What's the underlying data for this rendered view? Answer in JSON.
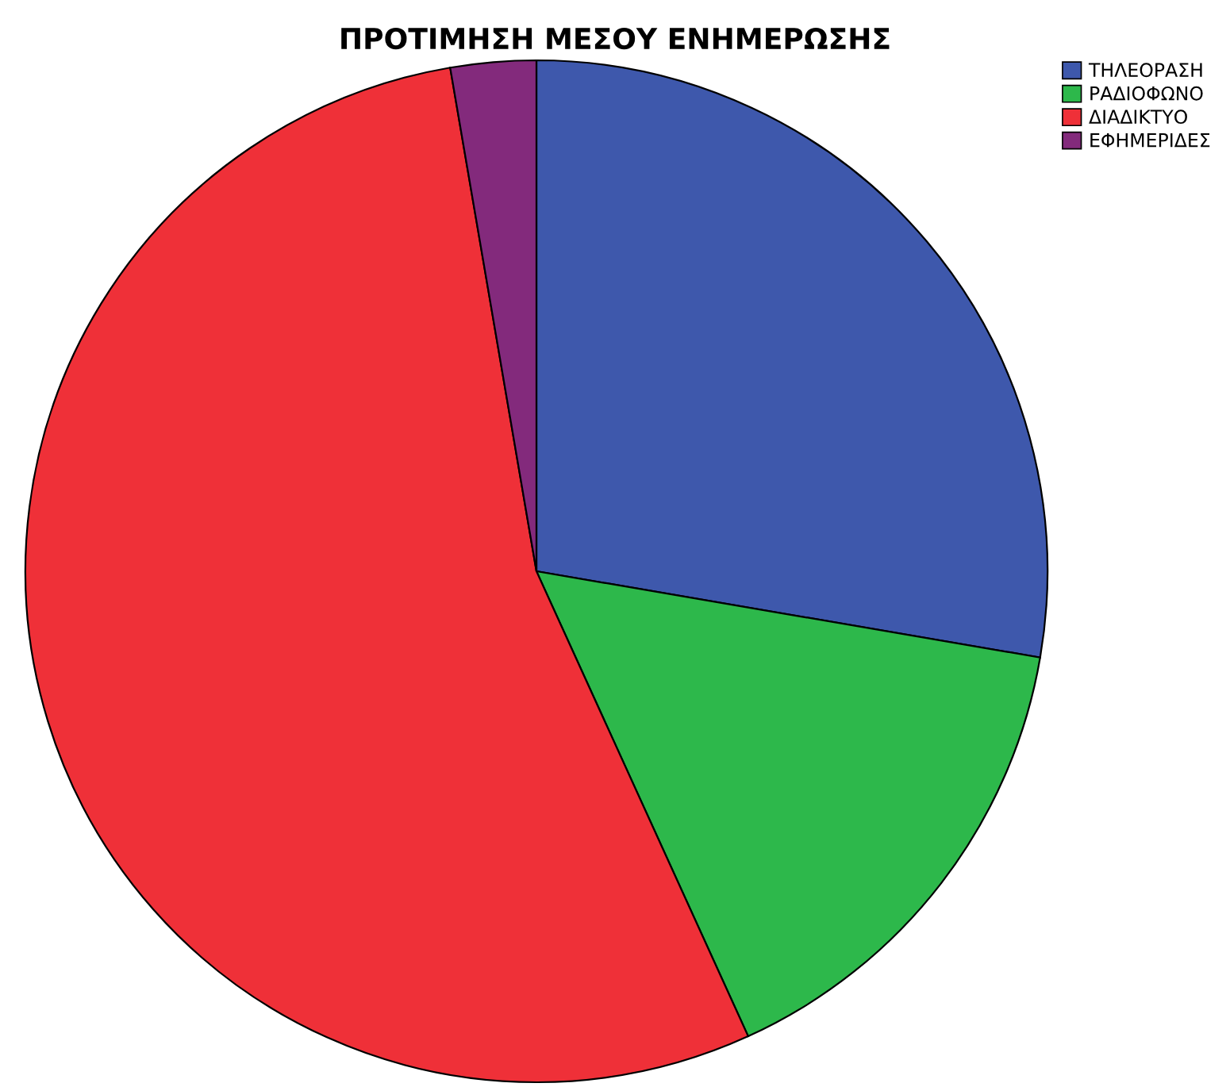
{
  "chart_data": {
    "type": "pie",
    "title": "ΠΡΟΤΙΜΗΣΗ ΜΕΣΟΥ ΕΝΗΜΕΡΩΣΗΣ",
    "categories": [
      "ΤΗΛΕΟΡΑΣΗ",
      "ΡΑΔΙΟΦΩΝΟ",
      "ΔΙΑΔΙΚΤΥΟ",
      "ΕΦΗΜΕΡΙΔΕΣ"
    ],
    "values": [
      27.7,
      15.5,
      54.1,
      2.7
    ],
    "colors": [
      "#3e58ac",
      "#2db84b",
      "#ef3038",
      "#832a7c"
    ],
    "legend": "top right"
  }
}
